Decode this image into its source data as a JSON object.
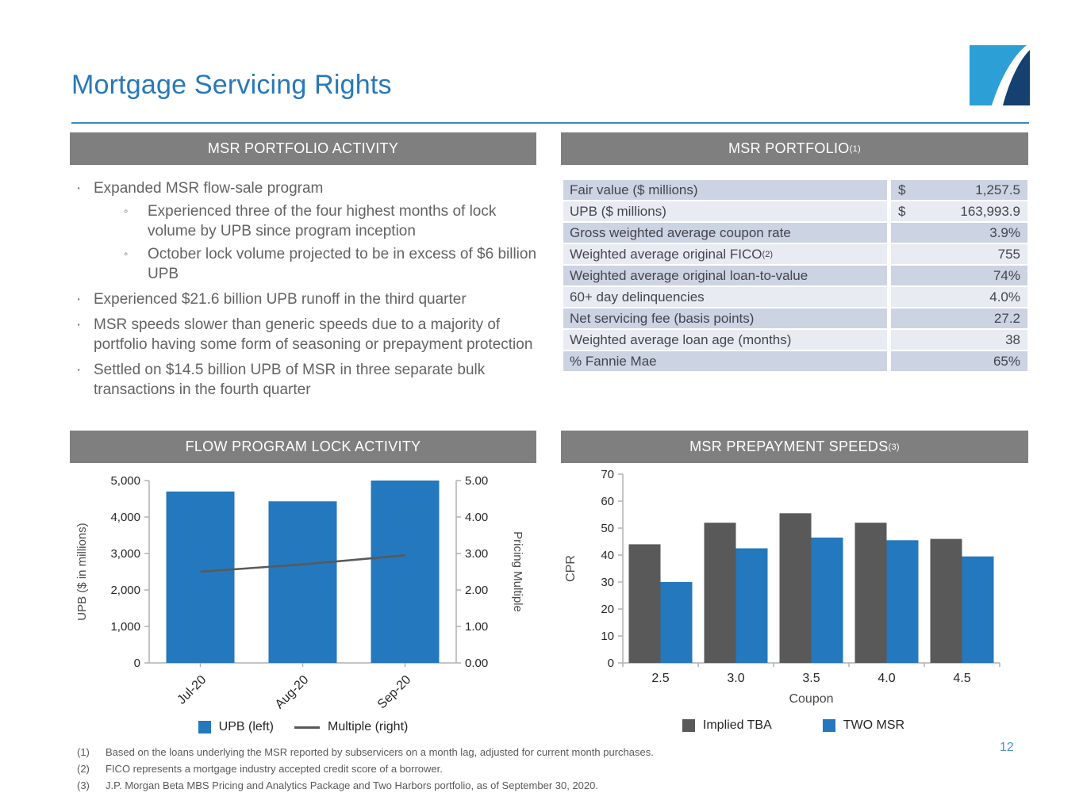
{
  "page": {
    "title": "Mortgage Servicing Rights",
    "page_number": "12"
  },
  "colors": {
    "title_blue": "#2878b9",
    "divider_blue": "#3c88c0",
    "header_gray": "#7f7f7f",
    "bar_blue": "#2478bd",
    "bar_gray": "#595959",
    "row_dark": "#ccd3e2",
    "row_light": "#e9ebf2",
    "text_gray": "#636363",
    "text_dark": "#44444e",
    "footnote_gray": "#595959",
    "pagenum_blue": "#4e93c8",
    "logo_light": "#2b9fd6",
    "logo_navy": "#16406f"
  },
  "panels": {
    "activity": {
      "header": "MSR PORTFOLIO ACTIVITY",
      "bullets": [
        {
          "level": 1,
          "text": "Expanded MSR flow-sale program"
        },
        {
          "level": 2,
          "text": "Experienced three of the four highest months of lock volume by UPB since program inception"
        },
        {
          "level": 2,
          "text": "October lock volume projected to be in excess of $6 billion UPB"
        },
        {
          "level": 1,
          "text": "Experienced $21.6 billion UPB runoff in the third quarter"
        },
        {
          "level": 1,
          "text": "MSR speeds slower than generic speeds due to a majority of portfolio having some form of seasoning or prepayment protection"
        },
        {
          "level": 1,
          "text": "Settled on $14.5 billion UPB of MSR in three separate bulk transactions in the fourth quarter"
        }
      ]
    },
    "portfolio": {
      "header": "MSR PORTFOLIO",
      "header_superscript": "(1)",
      "rows": [
        {
          "label": "Fair value ($ millions)",
          "currency": "$",
          "value": "1,257.5"
        },
        {
          "label": "UPB ($ millions)",
          "currency": "$",
          "value": "163,993.9"
        },
        {
          "label": "Gross weighted average coupon rate",
          "currency": "",
          "value": "3.9%"
        },
        {
          "label": "Weighted average original FICO",
          "label_superscript": "(2)",
          "currency": "",
          "value": "755"
        },
        {
          "label": "Weighted average original loan-to-value",
          "currency": "",
          "value": "74%"
        },
        {
          "label": "60+ day delinquencies",
          "currency": "",
          "value": "4.0%"
        },
        {
          "label": "Net servicing fee (basis points)",
          "currency": "",
          "value": "27.2"
        },
        {
          "label": "Weighted average loan age (months)",
          "currency": "",
          "value": "38"
        },
        {
          "label": "% Fannie Mae",
          "currency": "",
          "value": "65%"
        }
      ]
    },
    "flow": {
      "header": "FLOW PROGRAM LOCK ACTIVITY"
    },
    "speeds": {
      "header": "MSR PREPAYMENT SPEEDS",
      "header_superscript": "(3)"
    }
  },
  "chart_data": [
    {
      "name": "flow_program_lock_activity",
      "type": "bar",
      "title": "FLOW PROGRAM LOCK ACTIVITY",
      "categories": [
        "Jul-20",
        "Aug-20",
        "Sep-20"
      ],
      "bar_series": {
        "name": "UPB (left)",
        "values": [
          4700,
          4430,
          5000
        ],
        "color": "#2478bd",
        "axis": "left"
      },
      "line_series": {
        "name": "Multiple (right)",
        "values": [
          2.5,
          2.7,
          2.95
        ],
        "color": "#595959",
        "axis": "right"
      },
      "left_axis": {
        "label": "UPB ($ in millions)",
        "min": 0,
        "max": 5000,
        "ticks": [
          "0",
          "1,000",
          "2,000",
          "3,000",
          "4,000",
          "5,000"
        ]
      },
      "right_axis": {
        "label": "Pricing Multiple",
        "min": 0,
        "max": 5,
        "ticks": [
          "0.00",
          "1.00",
          "2.00",
          "3.00",
          "4.00",
          "5.00"
        ]
      },
      "grid": false,
      "legend_position": "bottom"
    },
    {
      "name": "msr_prepayment_speeds",
      "type": "bar",
      "title": "MSR PREPAYMENT SPEEDS",
      "categories": [
        "2.5",
        "3.0",
        "3.5",
        "4.0",
        "4.5"
      ],
      "series": [
        {
          "name": "Implied TBA",
          "values": [
            44,
            52,
            55.5,
            52,
            46
          ],
          "color": "#595959"
        },
        {
          "name": "TWO MSR",
          "values": [
            30,
            42.5,
            46.5,
            45.5,
            39.5
          ],
          "color": "#2478bd"
        }
      ],
      "xlabel": "Coupon",
      "ylabel": "CPR",
      "ylim": [
        0,
        70
      ],
      "yticks": [
        "0",
        "10",
        "20",
        "30",
        "40",
        "50",
        "60",
        "70"
      ],
      "grid": false,
      "legend_position": "bottom"
    }
  ],
  "footnotes": [
    {
      "num": "(1)",
      "text": "Based on the loans underlying the MSR reported by subservicers on a month lag, adjusted for current month purchases."
    },
    {
      "num": "(2)",
      "text": "FICO represents a mortgage industry accepted credit score of a borrower."
    },
    {
      "num": "(3)",
      "text": "J.P. Morgan Beta MBS Pricing and Analytics Package and Two Harbors portfolio, as of September 30, 2020."
    }
  ]
}
